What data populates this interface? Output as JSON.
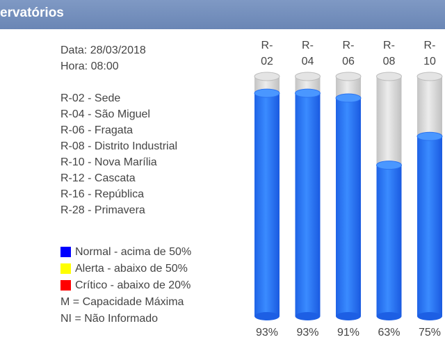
{
  "header": {
    "title": "ervatórios"
  },
  "info": {
    "date_line": "Data: 28/03/2018",
    "time_line": "Hora: 08:00"
  },
  "reservoirs": [
    "R-02 - Sede",
    "R-04 - São Miguel",
    "R-06 - Fragata",
    "R-08 - Distrito Industrial",
    "R-10 - Nova Marília",
    "R-12 - Cascata",
    "R-16 - República",
    "R-28 - Primavera"
  ],
  "legend": {
    "normal": {
      "label": "Normal - acima de 50%",
      "color": "#0000ff"
    },
    "alerta": {
      "label": "Alerta - abaixo de 50%",
      "color": "#ffff00"
    },
    "critico": {
      "label": "Crítico - abaixo de 20%",
      "color": "#ff0000"
    },
    "capacidade": "M = Capacidade Máxima",
    "nao_informado": "NI = Não Informado"
  },
  "chart_data": {
    "type": "bar",
    "categories": [
      "R-02",
      "R-04",
      "R-06",
      "R-08",
      "R-10"
    ],
    "category_labels": [
      [
        "R-",
        "02"
      ],
      [
        "R-",
        "04"
      ],
      [
        "R-",
        "06"
      ],
      [
        "R-",
        "08"
      ],
      [
        "R-",
        "10"
      ]
    ],
    "values": [
      93,
      93,
      91,
      63,
      75
    ],
    "value_labels": [
      "93%",
      "93%",
      "91%",
      "63%",
      "75%"
    ],
    "ylim": [
      0,
      100
    ],
    "fill_color": "#2f7dff",
    "empty_color": "#d9d9d9"
  }
}
